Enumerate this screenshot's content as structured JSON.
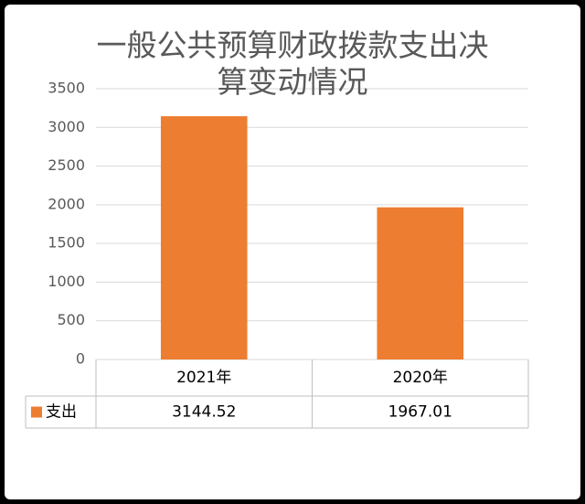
{
  "chart_data": {
    "type": "bar",
    "title": "一般公共预算财政拨款支出决算变动情况",
    "categories": [
      "2021年",
      "2020年"
    ],
    "series": [
      {
        "name": "支出",
        "color": "#ed7d31",
        "values": [
          3144.52,
          1967.01
        ]
      }
    ],
    "ylim": [
      0,
      3500
    ],
    "yticks": [
      0,
      500,
      1000,
      1500,
      2000,
      2500,
      3000,
      3500
    ],
    "grid": true
  }
}
